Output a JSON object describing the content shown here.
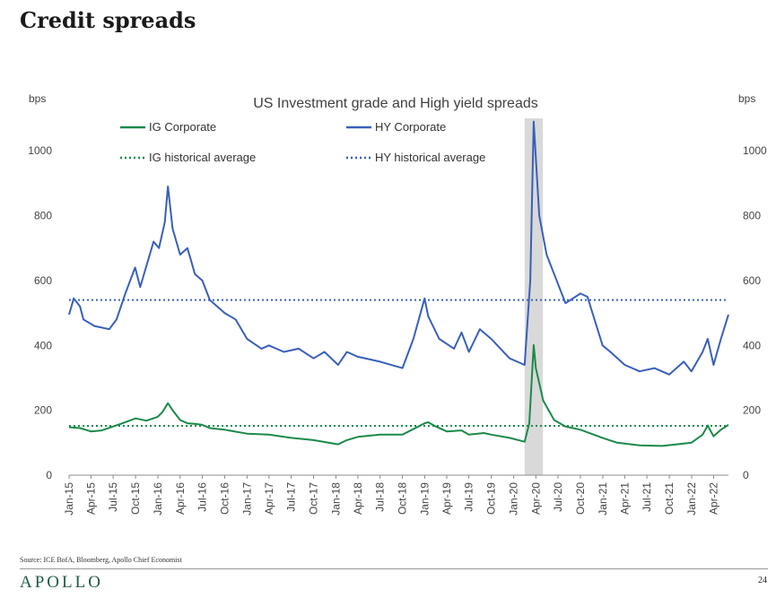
{
  "slide": {
    "title": "Credit spreads",
    "source": "Source: ICE BofA, Bloomberg, Apollo Chief Economist",
    "brand": "APOLLO",
    "page_number": "24"
  },
  "colors": {
    "ig": "#1b8a4a",
    "hy": "#3860b8",
    "recession": "#d9d9d9"
  },
  "chart_data": {
    "type": "line",
    "title": "US Investment grade and High yield spreads",
    "ylabel_left": "bps",
    "ylabel_right": "bps",
    "ylim": [
      0,
      1100
    ],
    "yticks": [
      0,
      200,
      400,
      600,
      800,
      1000
    ],
    "xlim": [
      "2015-01",
      "2022-06"
    ],
    "xticks": [
      "Jan-15",
      "Apr-15",
      "Jul-15",
      "Oct-15",
      "Jan-16",
      "Apr-16",
      "Jul-16",
      "Oct-16",
      "Jan-17",
      "Apr-17",
      "Jul-17",
      "Oct-17",
      "Jan-18",
      "Apr-18",
      "Jul-18",
      "Oct-18",
      "Jan-19",
      "Apr-19",
      "Jul-19",
      "Oct-19",
      "Jan-20",
      "Apr-20",
      "Jul-20",
      "Oct-20",
      "Jan-21",
      "Apr-21",
      "Jul-21",
      "Oct-21",
      "Jan-22",
      "Apr-22"
    ],
    "recession_shading": [
      "2020-02-15",
      "2020-04-30"
    ],
    "legend": "top",
    "series": [
      {
        "name": "IG Corporate",
        "style": "solid",
        "color": "#1b8a4a",
        "points": [
          [
            "2015-01-01",
            148
          ],
          [
            "2015-02-15",
            145
          ],
          [
            "2015-04-01",
            135
          ],
          [
            "2015-05-15",
            138
          ],
          [
            "2015-07-01",
            150
          ],
          [
            "2015-08-15",
            162
          ],
          [
            "2015-10-01",
            175
          ],
          [
            "2015-11-15",
            168
          ],
          [
            "2015-12-31",
            180
          ],
          [
            "2016-01-20",
            195
          ],
          [
            "2016-02-11",
            222
          ],
          [
            "2016-03-01",
            200
          ],
          [
            "2016-04-01",
            170
          ],
          [
            "2016-05-01",
            160
          ],
          [
            "2016-06-01",
            158
          ],
          [
            "2016-07-01",
            155
          ],
          [
            "2016-08-01",
            145
          ],
          [
            "2016-10-01",
            140
          ],
          [
            "2017-01-01",
            128
          ],
          [
            "2017-04-01",
            125
          ],
          [
            "2017-07-01",
            115
          ],
          [
            "2017-10-01",
            108
          ],
          [
            "2018-01-10",
            95
          ],
          [
            "2018-02-15",
            108
          ],
          [
            "2018-04-01",
            118
          ],
          [
            "2018-07-01",
            125
          ],
          [
            "2018-10-01",
            125
          ],
          [
            "2018-12-31",
            160
          ],
          [
            "2019-01-15",
            163
          ],
          [
            "2019-02-15",
            150
          ],
          [
            "2019-04-01",
            135
          ],
          [
            "2019-06-01",
            138
          ],
          [
            "2019-07-01",
            125
          ],
          [
            "2019-09-01",
            130
          ],
          [
            "2019-10-01",
            125
          ],
          [
            "2019-12-15",
            115
          ],
          [
            "2020-02-15",
            103
          ],
          [
            "2020-03-05",
            160
          ],
          [
            "2020-03-23",
            401
          ],
          [
            "2020-04-01",
            330
          ],
          [
            "2020-05-01",
            230
          ],
          [
            "2020-06-15",
            170
          ],
          [
            "2020-08-01",
            150
          ],
          [
            "2020-10-01",
            140
          ],
          [
            "2020-12-31",
            115
          ],
          [
            "2021-03-01",
            100
          ],
          [
            "2021-06-01",
            92
          ],
          [
            "2021-09-01",
            90
          ],
          [
            "2021-11-01",
            95
          ],
          [
            "2021-12-31",
            100
          ],
          [
            "2022-02-15",
            125
          ],
          [
            "2022-03-08",
            153
          ],
          [
            "2022-04-01",
            120
          ],
          [
            "2022-05-01",
            140
          ],
          [
            "2022-06-01",
            155
          ]
        ]
      },
      {
        "name": "HY Corporate",
        "style": "solid",
        "color": "#3860b8",
        "points": [
          [
            "2015-01-01",
            495
          ],
          [
            "2015-01-20",
            545
          ],
          [
            "2015-02-15",
            520
          ],
          [
            "2015-03-01",
            480
          ],
          [
            "2015-04-15",
            460
          ],
          [
            "2015-06-15",
            450
          ],
          [
            "2015-07-15",
            480
          ],
          [
            "2015-08-20",
            560
          ],
          [
            "2015-09-29",
            640
          ],
          [
            "2015-10-20",
            580
          ],
          [
            "2015-12-14",
            720
          ],
          [
            "2016-01-05",
            700
          ],
          [
            "2016-01-29",
            780
          ],
          [
            "2016-02-11",
            890
          ],
          [
            "2016-03-01",
            760
          ],
          [
            "2016-04-01",
            680
          ],
          [
            "2016-05-01",
            700
          ],
          [
            "2016-06-01",
            620
          ],
          [
            "2016-07-01",
            600
          ],
          [
            "2016-08-01",
            540
          ],
          [
            "2016-10-01",
            500
          ],
          [
            "2016-11-15",
            480
          ],
          [
            "2017-01-01",
            420
          ],
          [
            "2017-03-01",
            390
          ],
          [
            "2017-04-01",
            400
          ],
          [
            "2017-06-01",
            380
          ],
          [
            "2017-08-01",
            390
          ],
          [
            "2017-10-01",
            360
          ],
          [
            "2017-11-15",
            380
          ],
          [
            "2018-01-10",
            340
          ],
          [
            "2018-02-15",
            380
          ],
          [
            "2018-04-01",
            365
          ],
          [
            "2018-07-01",
            350
          ],
          [
            "2018-10-01",
            330
          ],
          [
            "2018-11-15",
            420
          ],
          [
            "2018-12-31",
            545
          ],
          [
            "2019-01-15",
            490
          ],
          [
            "2019-03-01",
            420
          ],
          [
            "2019-05-01",
            390
          ],
          [
            "2019-06-01",
            440
          ],
          [
            "2019-07-01",
            380
          ],
          [
            "2019-08-15",
            450
          ],
          [
            "2019-10-01",
            420
          ],
          [
            "2019-12-15",
            360
          ],
          [
            "2020-02-15",
            340
          ],
          [
            "2020-03-09",
            600
          ],
          [
            "2020-03-23",
            1090
          ],
          [
            "2020-04-15",
            800
          ],
          [
            "2020-05-15",
            680
          ],
          [
            "2020-06-15",
            620
          ],
          [
            "2020-08-01",
            530
          ],
          [
            "2020-10-01",
            560
          ],
          [
            "2020-10-30",
            550
          ],
          [
            "2020-12-31",
            400
          ],
          [
            "2021-02-01",
            380
          ],
          [
            "2021-04-01",
            340
          ],
          [
            "2021-06-01",
            320
          ],
          [
            "2021-08-01",
            330
          ],
          [
            "2021-10-01",
            310
          ],
          [
            "2021-11-30",
            350
          ],
          [
            "2021-12-31",
            320
          ],
          [
            "2022-02-15",
            380
          ],
          [
            "2022-03-08",
            420
          ],
          [
            "2022-04-01",
            340
          ],
          [
            "2022-05-01",
            420
          ],
          [
            "2022-06-01",
            495
          ]
        ]
      },
      {
        "name": "IG historical average",
        "style": "dotted",
        "color": "#1b8a4a",
        "value": 152
      },
      {
        "name": "HY historical average",
        "style": "dotted",
        "color": "#3860b8",
        "value": 540
      }
    ]
  }
}
